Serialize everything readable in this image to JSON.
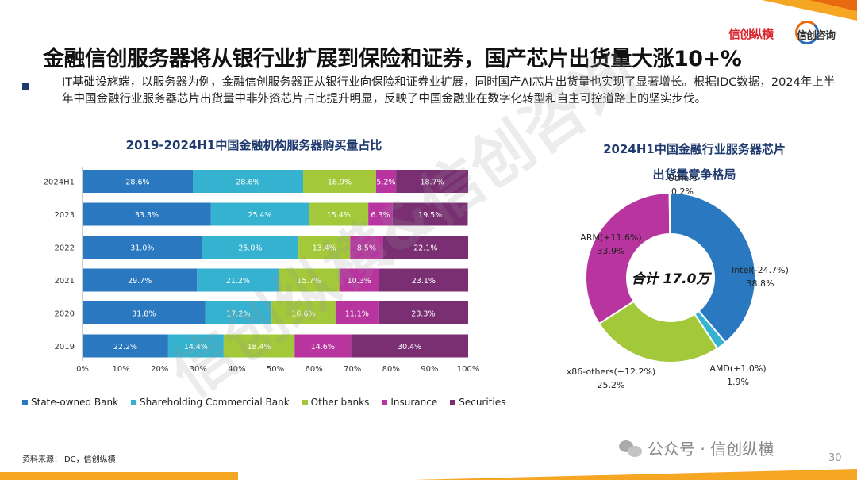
{
  "header": {
    "logo_left": "信创纵横",
    "logo_right": "信创咨询",
    "title": "金融信创服务器将从银行业扩展到保险和证券，国产芯片出货量大涨10+%"
  },
  "bullet": {
    "text": "IT基础设施端，以服务器为例，金融信创服务器正从银行业向保险和证券业扩展，同时国产AI芯片出货量也实现了显著增长。根据IDC数据，2024年上半年中国金融行业服务器芯片出货量中非外资芯片占比提升明显，反映了中国金融业在数字化转型和自主可控道路上的坚实步伐。"
  },
  "footer": {
    "source": "资料来源：IDC，信创纵横",
    "page": "30",
    "wechat": "公众号 · 信创纵横",
    "watermark": "信创纵横&信创咨询"
  },
  "colors": {
    "state_owned": "#2a78c0",
    "shareholding": "#35b2cf",
    "other_banks": "#a3c93a",
    "insurance": "#b8349f",
    "securities": "#7a2f73",
    "intel": "#2a78c0",
    "amd": "#35b2cf",
    "x86_others": "#a3c93a",
    "arm": "#b8349f",
    "pie_others": "#7a2f73"
  },
  "chart_data": [
    {
      "type": "bar",
      "orientation": "horizontal-stacked-100",
      "title": "2019-2024H1中国金融机构服务器购买量占比",
      "categories": [
        "2024H1",
        "2023",
        "2022",
        "2021",
        "2020",
        "2019"
      ],
      "series": [
        {
          "name": "State-owned Bank",
          "values": [
            28.6,
            33.3,
            31.0,
            29.7,
            31.8,
            22.2
          ]
        },
        {
          "name": "Shareholding Commercial Bank",
          "values": [
            28.6,
            25.4,
            25.0,
            21.2,
            17.2,
            14.4
          ]
        },
        {
          "name": "Other banks",
          "values": [
            18.9,
            15.4,
            13.4,
            15.7,
            16.6,
            18.4
          ]
        },
        {
          "name": "Insurance",
          "values": [
            5.2,
            6.3,
            8.5,
            10.3,
            11.1,
            14.6
          ]
        },
        {
          "name": "Securities",
          "values": [
            18.7,
            19.5,
            22.1,
            23.1,
            23.3,
            30.4
          ]
        }
      ],
      "xlim": [
        0,
        100
      ],
      "xticks": [
        "0%",
        "10%",
        "20%",
        "30%",
        "40%",
        "50%",
        "60%",
        "70%",
        "80%",
        "90%",
        "100%"
      ],
      "legend": "bottom"
    },
    {
      "type": "pie",
      "variant": "donut",
      "title_lines": [
        "2024H1中国金融行业服务器芯片",
        "出货量竞争格局"
      ],
      "center_label": "合计 17.0万",
      "slices": [
        {
          "name": "Intel(-24.7%)",
          "value": 38.8,
          "label": "38.8%"
        },
        {
          "name": "AMD(+1.0%)",
          "value": 1.9,
          "label": "1.9%"
        },
        {
          "name": "x86-others(+12.2%)",
          "value": 25.2,
          "label": "25.2%"
        },
        {
          "name": "ARM(+11.6%)",
          "value": 33.9,
          "label": "33.9%"
        },
        {
          "name": "Others",
          "value": 0.2,
          "label": "0.2%"
        }
      ]
    }
  ]
}
